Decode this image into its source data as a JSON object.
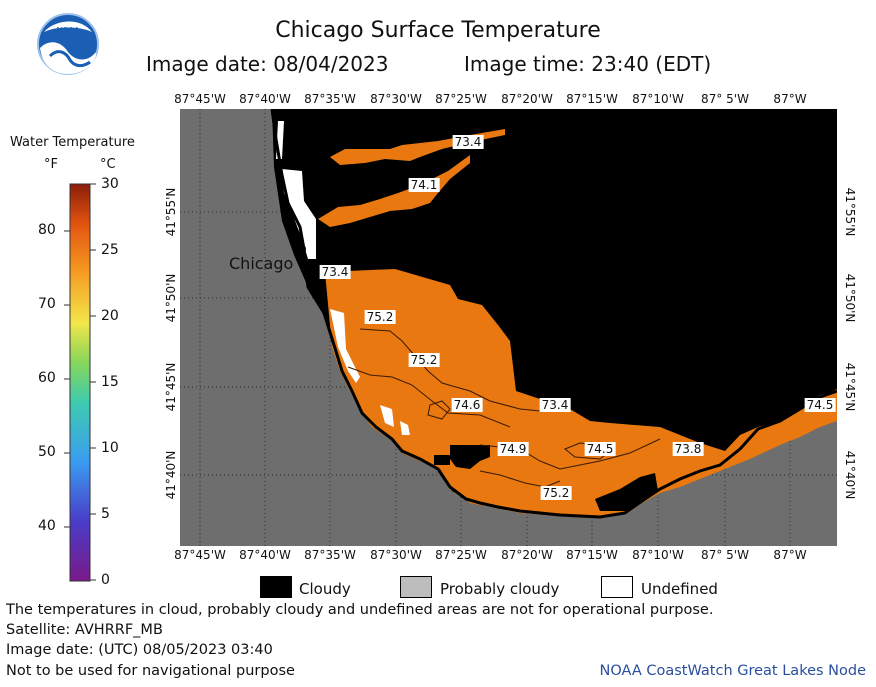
{
  "header": {
    "title": "Chicago Surface Temperature",
    "image_date": "Image date: 08/04/2023",
    "image_time": "Image time: 23:40 (EDT)"
  },
  "logo": {
    "text": "NOAA"
  },
  "colorbar": {
    "title": "Water Temperature",
    "unit_f": "°F",
    "unit_c": "°C",
    "fahrenheit_ticks": [
      "80",
      "70",
      "60",
      "50",
      "40"
    ],
    "celsius_ticks": [
      "30",
      "25",
      "20",
      "15",
      "10",
      "5",
      "0"
    ]
  },
  "map": {
    "lon_labels": [
      "87°45'W",
      "87°40'W",
      "87°35'W",
      "87°30'W",
      "87°25'W",
      "87°20'W",
      "87°15'W",
      "87°10'W",
      "87° 5'W",
      "87°W"
    ],
    "lat_labels": [
      "41°55'N",
      "41°50'N",
      "41°45'N",
      "41°40'N"
    ],
    "city": "Chicago",
    "temperature_labels": [
      "73.4",
      "74.1",
      "73.4",
      "75.2",
      "75.2",
      "74.6",
      "73.4",
      "74.9",
      "74.5",
      "73.8",
      "74.5",
      "75.2"
    ],
    "colors": {
      "land": "#6e6e6e",
      "cloud": "#000000",
      "water_warm": "#e8780f",
      "undefined": "#ffffff"
    }
  },
  "legend": {
    "cloudy": "Cloudy",
    "probably_cloudy": "Probably cloudy",
    "undefined": "Undefined"
  },
  "footer": {
    "line1": "The temperatures in cloud, probably cloudy and undefined areas are not for operational purpose.",
    "line2": "Satellite: AVHRRF_MB",
    "line3": "Image date: (UTC) 08/05/2023  03:40",
    "line4": "Not to be used for navigational purpose",
    "credit": "NOAA CoastWatch Great Lakes Node"
  }
}
